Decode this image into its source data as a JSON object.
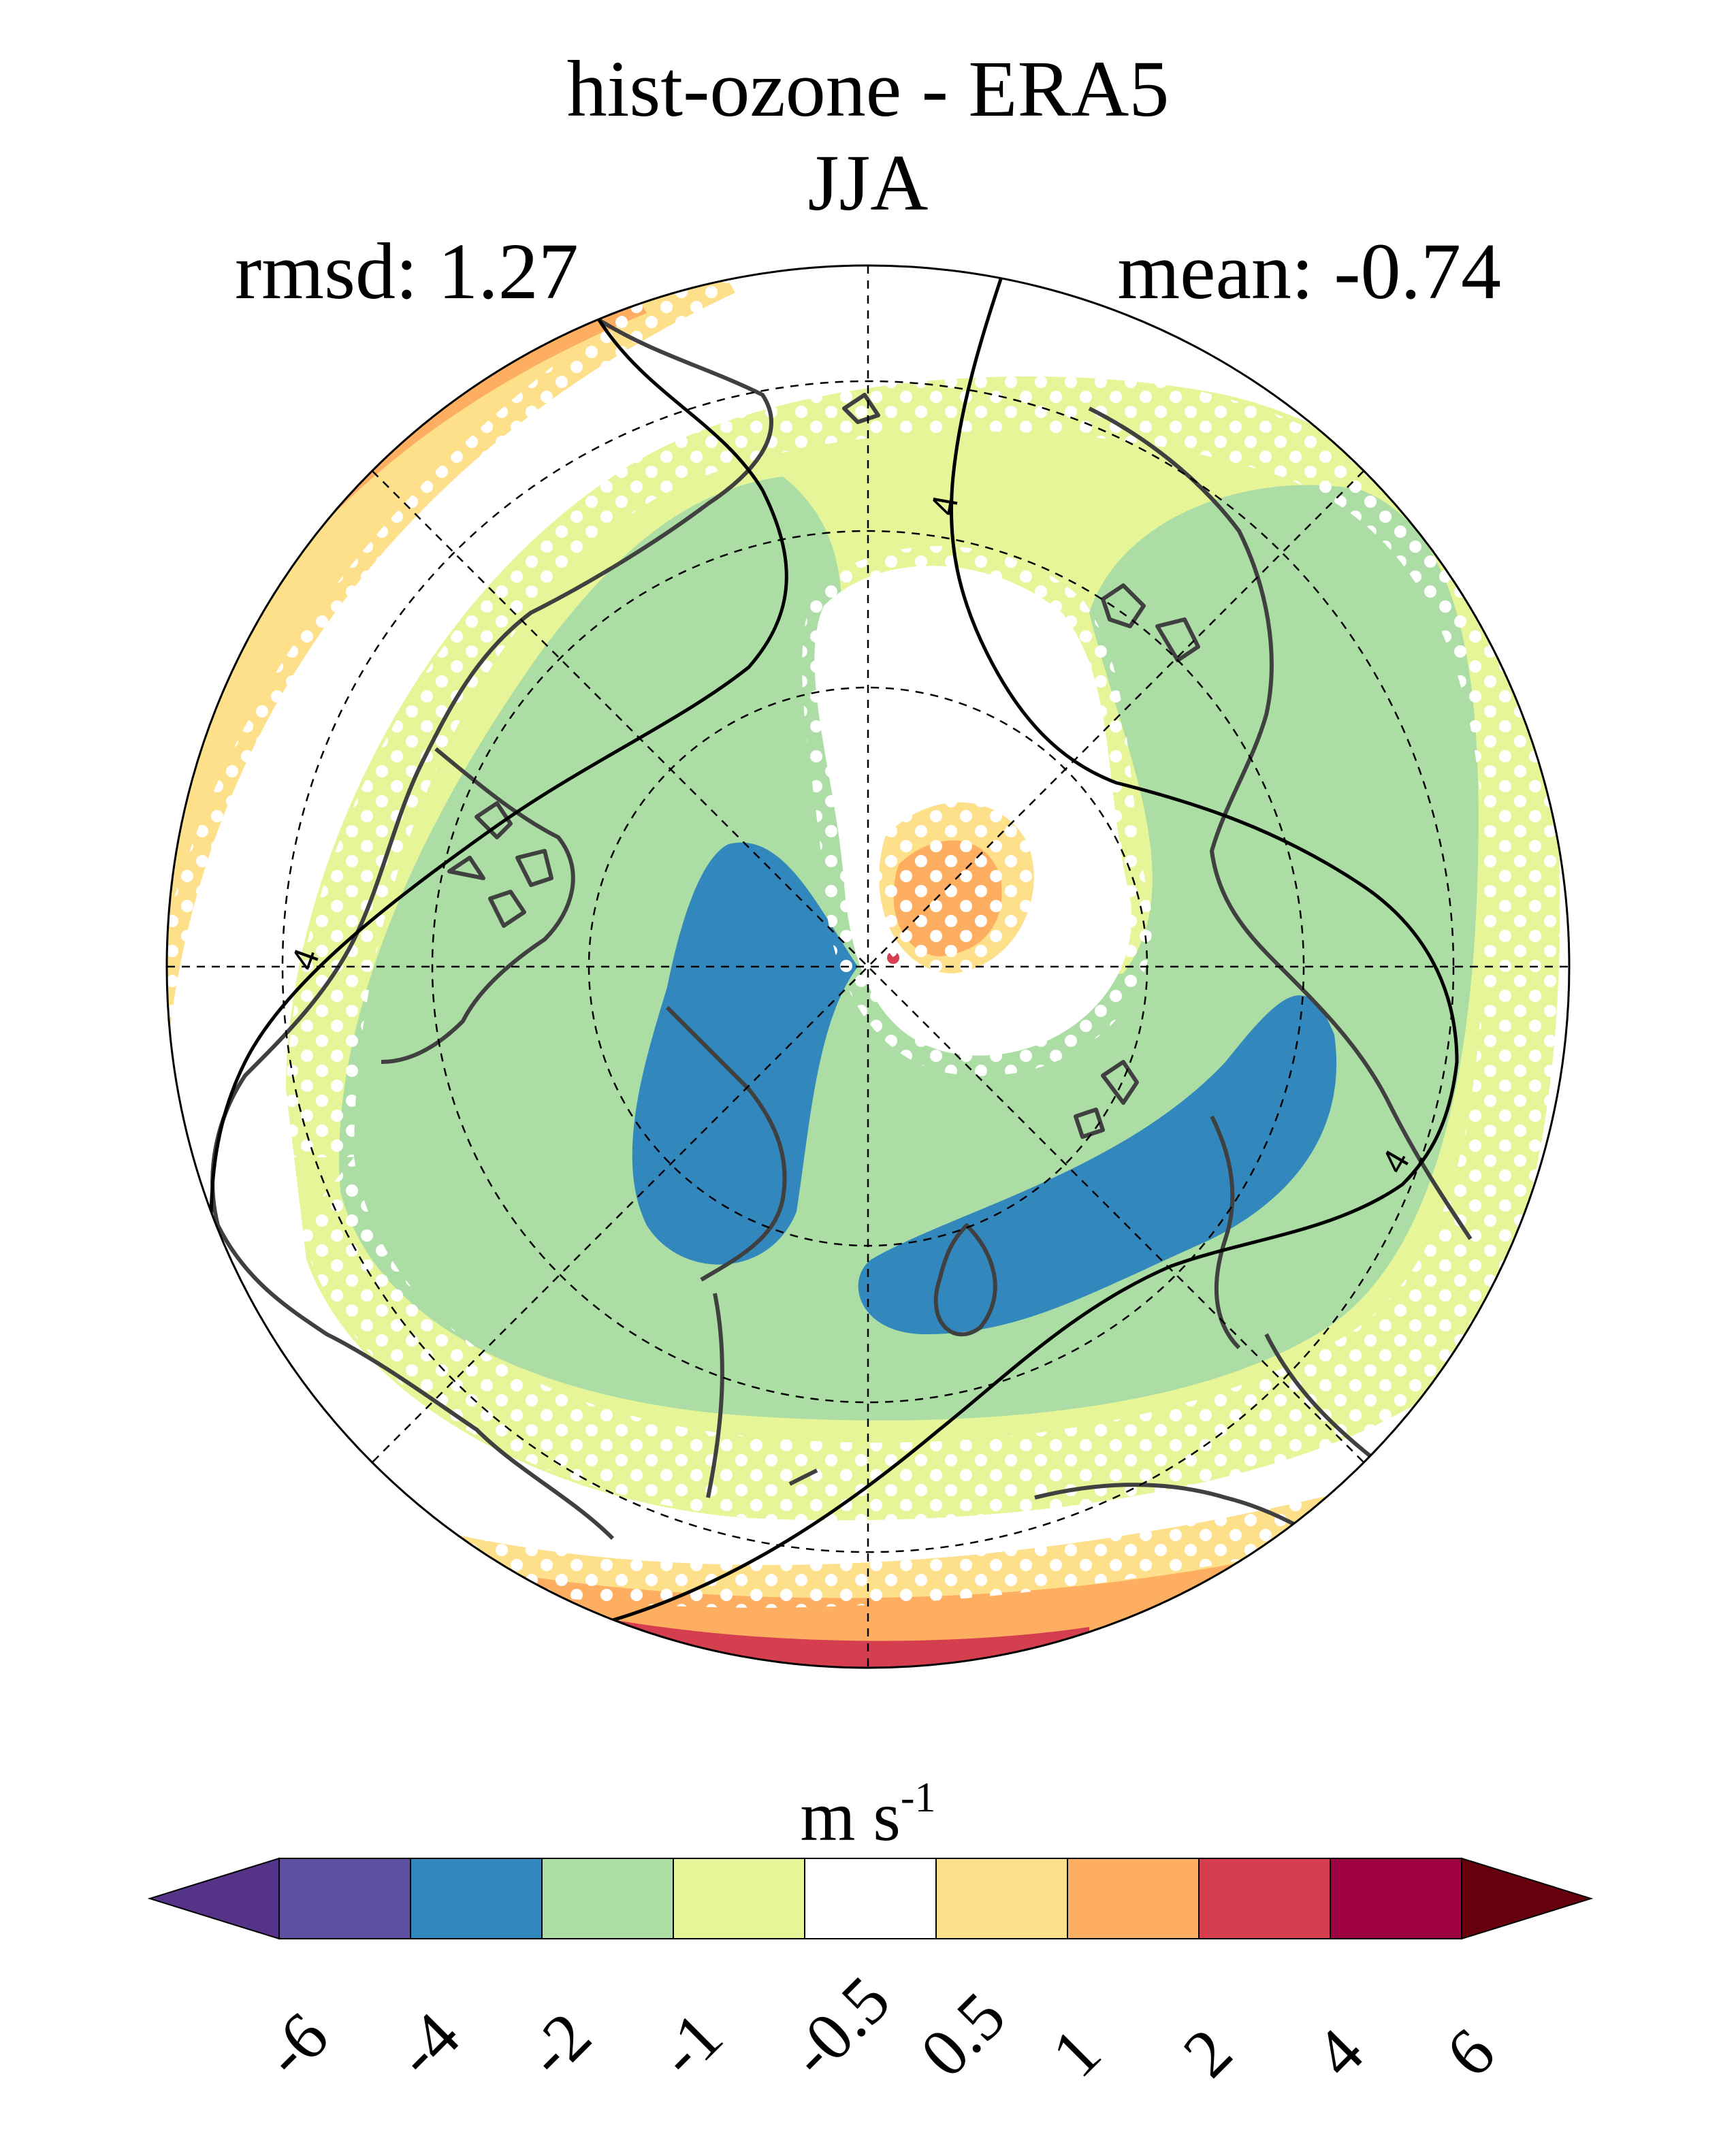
{
  "title": "hist-ozone - ERA5",
  "subtitle": "JJA",
  "stats": {
    "rmsd": "rmsd: 1.27",
    "mean": "mean: -0.74"
  },
  "map": {
    "projection": "north-polar-stereographic",
    "contour_label": "4",
    "stippling": "white dots mark significant differences"
  },
  "colorbar": {
    "units_base": "m s",
    "units_exp": "-1",
    "ticks": [
      "-6",
      "-4",
      "-2",
      "-1",
      "-0.5",
      "0.5",
      "1",
      "2",
      "4",
      "6"
    ],
    "colors": [
      "#5e4fa2",
      "#3288bd",
      "#abdda4",
      "#e6f598",
      "#ffffff",
      "#fee08b",
      "#fdae61",
      "#d53e4f",
      "#9e0142"
    ],
    "extend_low_color": "#553388",
    "extend_high_color": "#67000d"
  }
}
